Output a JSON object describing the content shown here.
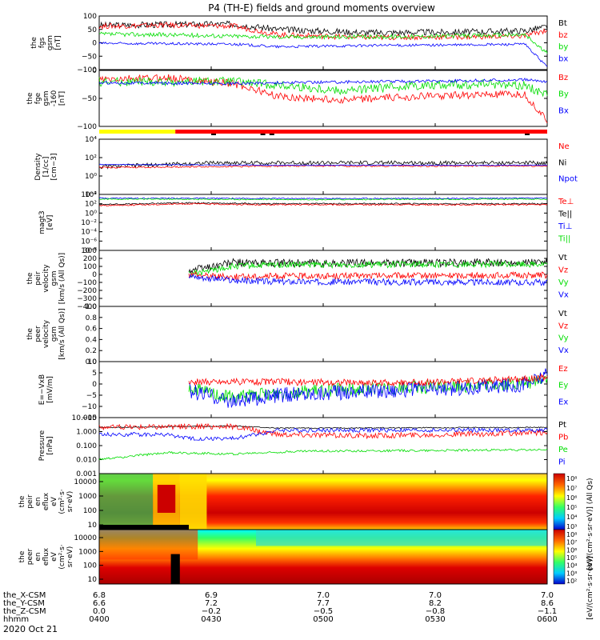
{
  "title": "P4 (TH-E) fields and ground moments overview",
  "date_label": "2020 Oct 21",
  "chart_data": [
    {
      "type": "line",
      "name": "fgs-gsm",
      "ylabel": [
        "the",
        "fgs",
        "gsm",
        "[nT]"
      ],
      "ylim": [
        -100,
        100
      ],
      "yticks": [
        "100",
        "50",
        "0",
        "−50",
        "−100"
      ],
      "legend": [
        {
          "label": "Bt",
          "color": "#000000"
        },
        {
          "label": "bz",
          "color": "#ff0000"
        },
        {
          "label": "by",
          "color": "#00dd00"
        },
        {
          "label": "bx",
          "color": "#0000ff"
        }
      ],
      "series": [
        {
          "name": "Bt",
          "color": "#000000",
          "base": [
            [
              0,
              65
            ],
            [
              0.15,
              68
            ],
            [
              0.3,
              70
            ],
            [
              0.4,
              50
            ],
            [
              0.6,
              38
            ],
            [
              0.8,
              40
            ],
            [
              0.95,
              45
            ],
            [
              1,
              60
            ]
          ],
          "noise": 12
        },
        {
          "name": "bz",
          "color": "#ff0000",
          "base": [
            [
              0,
              62
            ],
            [
              0.15,
              66
            ],
            [
              0.3,
              62
            ],
            [
              0.4,
              30
            ],
            [
              0.6,
              20
            ],
            [
              0.8,
              22
            ],
            [
              0.95,
              25
            ],
            [
              1,
              48
            ]
          ],
          "noise": 10
        },
        {
          "name": "by",
          "color": "#00dd00",
          "base": [
            [
              0,
              32
            ],
            [
              0.15,
              30
            ],
            [
              0.3,
              25
            ],
            [
              0.4,
              22
            ],
            [
              0.6,
              22
            ],
            [
              0.8,
              26
            ],
            [
              0.95,
              30
            ],
            [
              1,
              -40
            ]
          ],
          "noise": 8
        },
        {
          "name": "bx",
          "color": "#0000ff",
          "base": [
            [
              0,
              -2
            ],
            [
              0.3,
              -5
            ],
            [
              0.4,
              -15
            ],
            [
              0.6,
              -10
            ],
            [
              0.8,
              -8
            ],
            [
              0.95,
              -5
            ],
            [
              1,
              -90
            ]
          ],
          "noise": 5
        }
      ]
    },
    {
      "type": "line",
      "name": "fge-gsm",
      "ylabel": [
        "the",
        "fge",
        "gsm",
        "-160",
        "[nT]"
      ],
      "ylim": [
        -125,
        25
      ],
      "yticks": [
        "0",
        "−50",
        "−100"
      ],
      "legend": [
        {
          "label": "Bz",
          "color": "#ff0000"
        },
        {
          "label": "By",
          "color": "#00dd00"
        },
        {
          "label": "Bx",
          "color": "#0000ff"
        }
      ],
      "series": [
        {
          "name": "Bz",
          "color": "#ff0000",
          "base": [
            [
              0,
              0
            ],
            [
              0.15,
              5
            ],
            [
              0.3,
              -10
            ],
            [
              0.4,
              -45
            ],
            [
              0.55,
              -55
            ],
            [
              0.7,
              -45
            ],
            [
              0.85,
              -40
            ],
            [
              0.95,
              -40
            ],
            [
              1,
              -110
            ]
          ],
          "noise": 10
        },
        {
          "name": "By",
          "color": "#00dd00",
          "base": [
            [
              0,
              -5
            ],
            [
              0.15,
              -5
            ],
            [
              0.3,
              -5
            ],
            [
              0.4,
              -15
            ],
            [
              0.55,
              -30
            ],
            [
              0.7,
              -15
            ],
            [
              0.85,
              -12
            ],
            [
              0.95,
              -15
            ],
            [
              1,
              -40
            ]
          ],
          "noise": 12
        },
        {
          "name": "Bx",
          "color": "#0000ff",
          "base": [
            [
              0,
              -8
            ],
            [
              0.3,
              -10
            ],
            [
              0.4,
              -8
            ],
            [
              0.6,
              -5
            ],
            [
              0.8,
              -3
            ],
            [
              0.95,
              0
            ],
            [
              1,
              -5
            ]
          ],
          "noise": 4
        }
      ]
    },
    {
      "type": "line",
      "name": "density",
      "ylabel": [
        "Density",
        "[1/cc]",
        "[cm−3]"
      ],
      "yscale": "log",
      "ylim": [
        -3,
        4
      ],
      "yticks": [
        "10⁴",
        "10²",
        "10⁰",
        "10⁻²"
      ],
      "legend": [
        {
          "label": "Ne",
          "color": "#ff0000"
        },
        {
          "label": "Ni",
          "color": "#000000"
        },
        {
          "label": "Npot",
          "color": "#0000ff"
        }
      ],
      "series": [
        {
          "name": "Ni",
          "color": "#000000",
          "base": [
            [
              0,
              0.5
            ],
            [
              0.15,
              0.8
            ],
            [
              0.25,
              1.0
            ],
            [
              1,
              1.0
            ]
          ],
          "noise": 0.25
        },
        {
          "name": "Ne",
          "color": "#ff0000",
          "base": [
            [
              0,
              0.4
            ],
            [
              0.2,
              0.5
            ],
            [
              0.4,
              0.6
            ],
            [
              1,
              0.6
            ]
          ],
          "noise": 0.1
        },
        {
          "name": "Npot",
          "color": "#0000ff",
          "base": [
            [
              0,
              0.8
            ],
            [
              0.4,
              0.7
            ],
            [
              1,
              0.7
            ]
          ],
          "noise": 0.05
        }
      ]
    },
    {
      "type": "line",
      "name": "temperature",
      "ylabel": [
        "magt3",
        "[eV]"
      ],
      "yscale": "log",
      "ylim": [
        -8,
        4
      ],
      "yticks": [
        "10⁴",
        "10²",
        "10⁰",
        "10⁻²",
        "10⁻⁴",
        "10⁻⁶",
        "10⁻⁸"
      ],
      "legend": [
        {
          "label": "Te⊥",
          "color": "#ff0000"
        },
        {
          "label": "Te||",
          "color": "#000000"
        },
        {
          "label": "Ti⊥",
          "color": "#0000ff"
        },
        {
          "label": "Ti||",
          "color": "#00dd00"
        }
      ],
      "series": [
        {
          "name": "Ti⊥",
          "color": "#0000ff",
          "base": [
            [
              0,
              3.2
            ],
            [
              0.5,
              3.1
            ],
            [
              1,
              3.2
            ]
          ],
          "noise": 0.12
        },
        {
          "name": "Ti||",
          "color": "#00dd00",
          "base": [
            [
              0,
              3.0
            ],
            [
              0.5,
              2.9
            ],
            [
              1,
              3.0
            ]
          ],
          "noise": 0.12
        },
        {
          "name": "Te||",
          "color": "#000000",
          "base": [
            [
              0,
              1.8
            ],
            [
              0.2,
              2.2
            ],
            [
              0.35,
              2.0
            ],
            [
              1,
              2.0
            ]
          ],
          "noise": 0.15
        },
        {
          "name": "Te⊥",
          "color": "#ff0000",
          "base": [
            [
              0,
              1.6
            ],
            [
              0.2,
              2.0
            ],
            [
              0.35,
              1.8
            ],
            [
              1,
              1.8
            ]
          ],
          "noise": 0.15
        }
      ]
    },
    {
      "type": "line",
      "name": "peir-velocity",
      "ylabel": [
        "the",
        "peir",
        "velocity",
        "gsm",
        "[km/s (All Qs)]"
      ],
      "ylim": [
        -400,
        300
      ],
      "yticks": [
        "300",
        "200",
        "100",
        "0",
        "−100",
        "−200",
        "−300",
        "−400"
      ],
      "legend": [
        {
          "label": "Vt",
          "color": "#000000"
        },
        {
          "label": "Vz",
          "color": "#ff0000"
        },
        {
          "label": "Vy",
          "color": "#00dd00"
        },
        {
          "label": "Vx",
          "color": "#0000ff"
        }
      ],
      "series": [
        {
          "name": "Vt",
          "color": "#000000",
          "start": 0.2,
          "base": [
            [
              0.2,
              50
            ],
            [
              0.3,
              150
            ],
            [
              0.35,
              140
            ],
            [
              0.5,
              140
            ],
            [
              1,
              150
            ]
          ],
          "noise": 50
        },
        {
          "name": "Vy",
          "color": "#00dd00",
          "start": 0.2,
          "base": [
            [
              0.2,
              0
            ],
            [
              0.3,
              100
            ],
            [
              0.4,
              120
            ],
            [
              1,
              130
            ]
          ],
          "noise": 40
        },
        {
          "name": "Vz",
          "color": "#ff0000",
          "start": 0.2,
          "base": [
            [
              0.2,
              0
            ],
            [
              0.3,
              -30
            ],
            [
              0.4,
              -20
            ],
            [
              1,
              -10
            ]
          ],
          "noise": 40
        },
        {
          "name": "Vx",
          "color": "#0000ff",
          "start": 0.2,
          "base": [
            [
              0.2,
              -20
            ],
            [
              0.3,
              -80
            ],
            [
              0.4,
              -90
            ],
            [
              1,
              -100
            ]
          ],
          "noise": 40
        }
      ]
    },
    {
      "type": "line",
      "name": "peer-velocity",
      "ylabel": [
        "the",
        "peer",
        "velocity",
        "gsm",
        "[km/s (All Qs)]"
      ],
      "ylim": [
        0,
        1
      ],
      "yticks": [
        "1.0",
        "0.8",
        "0.6",
        "0.4",
        "0.2",
        "0.0"
      ],
      "legend": [
        {
          "label": "Vt",
          "color": "#000000"
        },
        {
          "label": "Vz",
          "color": "#ff0000"
        },
        {
          "label": "Vy",
          "color": "#00dd00"
        },
        {
          "label": "Vx",
          "color": "#0000ff"
        }
      ],
      "series": []
    },
    {
      "type": "line",
      "name": "efield",
      "ylabel": [
        "E=−VxB",
        "[mV/m]"
      ],
      "ylim": [
        -15,
        10
      ],
      "yticks": [
        "10",
        "5",
        "0",
        "−5",
        "−10",
        "−15"
      ],
      "legend": [
        {
          "label": "Ez",
          "color": "#ff0000"
        },
        {
          "label": "Ey",
          "color": "#00dd00"
        },
        {
          "label": "Ex",
          "color": "#0000ff"
        }
      ],
      "series": [
        {
          "name": "Ey",
          "color": "#00dd00",
          "start": 0.2,
          "base": [
            [
              0.2,
              -2
            ],
            [
              0.3,
              -6
            ],
            [
              0.4,
              -4
            ],
            [
              0.6,
              -2
            ],
            [
              0.8,
              -1
            ],
            [
              0.95,
              0
            ],
            [
              1,
              3
            ]
          ],
          "noise": 3
        },
        {
          "name": "Ex",
          "color": "#0000ff",
          "start": 0.2,
          "base": [
            [
              0.2,
              -3
            ],
            [
              0.3,
              -8
            ],
            [
              0.4,
              -5
            ],
            [
              0.6,
              -3
            ],
            [
              0.8,
              -2
            ],
            [
              0.95,
              0
            ],
            [
              1,
              4
            ]
          ],
          "noise": 3.5
        },
        {
          "name": "Ez",
          "color": "#ff0000",
          "start": 0.2,
          "base": [
            [
              0.2,
              1
            ],
            [
              0.4,
              1
            ],
            [
              0.6,
              0.5
            ],
            [
              0.8,
              1
            ],
            [
              1,
              3
            ]
          ],
          "noise": 1.5
        }
      ]
    },
    {
      "type": "line",
      "name": "pressure",
      "ylabel": [
        "Pressure",
        "[nPa]"
      ],
      "yscale": "log",
      "ylim": [
        -3,
        1
      ],
      "yticks": [
        "10.000",
        "1.000",
        "0.100",
        "0.010",
        "0.001"
      ],
      "legend": [
        {
          "label": "Pt",
          "color": "#000000"
        },
        {
          "label": "Pb",
          "color": "#ff0000"
        },
        {
          "label": "Pe",
          "color": "#00dd00"
        },
        {
          "label": "Pi",
          "color": "#0000ff"
        }
      ],
      "series": [
        {
          "name": "Pt",
          "color": "#000000",
          "base": [
            [
              0,
              0.3
            ],
            [
              0.15,
              0.35
            ],
            [
              0.3,
              0.4
            ],
            [
              0.4,
              0.25
            ],
            [
              1,
              0.3
            ]
          ],
          "noise": 0.04
        },
        {
          "name": "Pb",
          "color": "#ff0000",
          "base": [
            [
              0,
              0.3
            ],
            [
              0.15,
              0.35
            ],
            [
              0.3,
              0.35
            ],
            [
              0.4,
              -0.2
            ],
            [
              0.6,
              -0.3
            ],
            [
              0.8,
              -0.2
            ],
            [
              1,
              -0.1
            ]
          ],
          "noise": 0.2
        },
        {
          "name": "Pi",
          "color": "#0000ff",
          "base": [
            [
              0,
              -0.2
            ],
            [
              0.15,
              -0.2
            ],
            [
              0.2,
              -0.5
            ],
            [
              0.3,
              -0.5
            ],
            [
              0.4,
              0.1
            ],
            [
              1,
              0.1
            ]
          ],
          "noise": 0.15
        },
        {
          "name": "Pe",
          "color": "#00dd00",
          "base": [
            [
              0,
              -2.0
            ],
            [
              0.15,
              -1.5
            ],
            [
              0.3,
              -1.6
            ],
            [
              0.45,
              -1.4
            ],
            [
              1,
              -1.3
            ]
          ],
          "noise": 0.08
        }
      ]
    },
    {
      "type": "heatmap",
      "name": "peir-spectrogram",
      "ylabel": [
        "the",
        "peir",
        "en",
        "eflux",
        "eV",
        "(cm²·s·",
        "sr·eV)"
      ],
      "yticks": [
        "10000",
        "1000",
        "100",
        "10"
      ],
      "colorbar": {
        "label": "[eV/(cm²·s·sr·eV)] (All Qs)",
        "ticks": [
          "10⁸",
          "10⁷",
          "10⁶",
          "10⁵",
          "10⁴",
          "10³"
        ]
      }
    },
    {
      "type": "heatmap",
      "name": "peer-spectrogram",
      "ylabel": [
        "the",
        "peer",
        "en",
        "eflux",
        "eV",
        "(cm²·s·",
        "sr·eV)"
      ],
      "yticks": [
        "10000",
        "1000",
        "100",
        "10"
      ],
      "colorbar": {
        "label": "[eV/(cm²·s·sr·eV)]",
        "ticks": [
          "10⁸",
          "10⁷",
          "10⁶",
          "10⁵",
          "10⁴",
          "10³",
          "10²"
        ]
      }
    }
  ],
  "xaxis": {
    "rows": [
      {
        "label": "the_X-CSM",
        "values": [
          "6.8",
          "6.9",
          "7.0",
          "7.0",
          "7.0"
        ]
      },
      {
        "label": "the_Y-CSM",
        "values": [
          "6.6",
          "7.2",
          "7.7",
          "8.2",
          "8.6"
        ]
      },
      {
        "label": "the_Z-CSM",
        "values": [
          "0.0",
          "−0.2",
          "−0.5",
          "−0.8",
          "−1.1"
        ]
      },
      {
        "label": "hhmm",
        "values": [
          "0400",
          "0430",
          "0500",
          "0530",
          "0600"
        ]
      }
    ]
  }
}
